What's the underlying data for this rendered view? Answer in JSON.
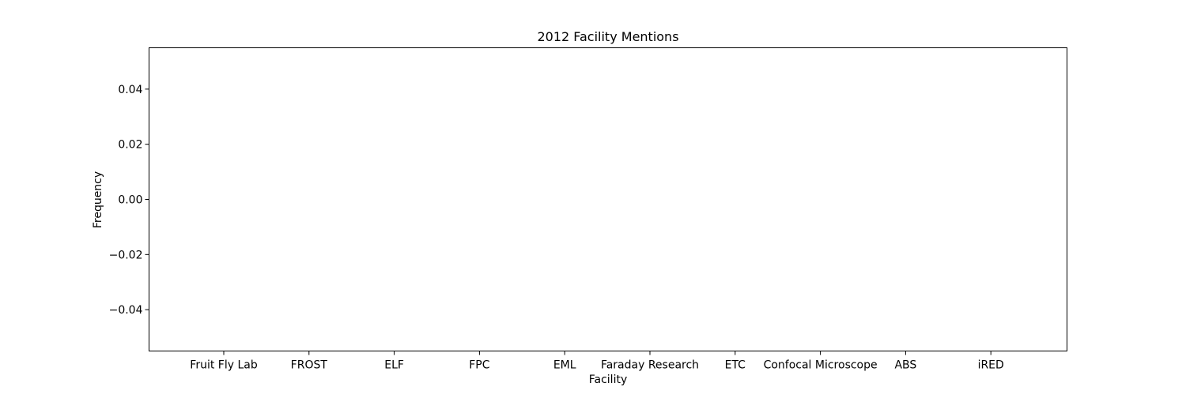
{
  "chart_data": {
    "type": "bar",
    "title": "2012 Facility Mentions",
    "xlabel": "Facility",
    "ylabel": "Frequency",
    "categories": [
      "Fruit Fly Lab",
      "FROST",
      "ELF",
      "FPC",
      "EML",
      "Faraday Research",
      "ETC",
      "Confocal Microscope",
      "ABS",
      "iRED"
    ],
    "values": [
      0,
      0,
      0,
      0,
      0,
      0,
      0,
      0,
      0,
      0
    ],
    "ylim": [
      -0.055,
      0.055
    ],
    "yticks": [
      -0.04,
      -0.02,
      0.0,
      0.02,
      0.04
    ],
    "ytick_labels": [
      "−0.04",
      "−0.02",
      "0.00",
      "0.02",
      "0.04"
    ],
    "grid": false,
    "bar_color": "#1f77b4"
  }
}
